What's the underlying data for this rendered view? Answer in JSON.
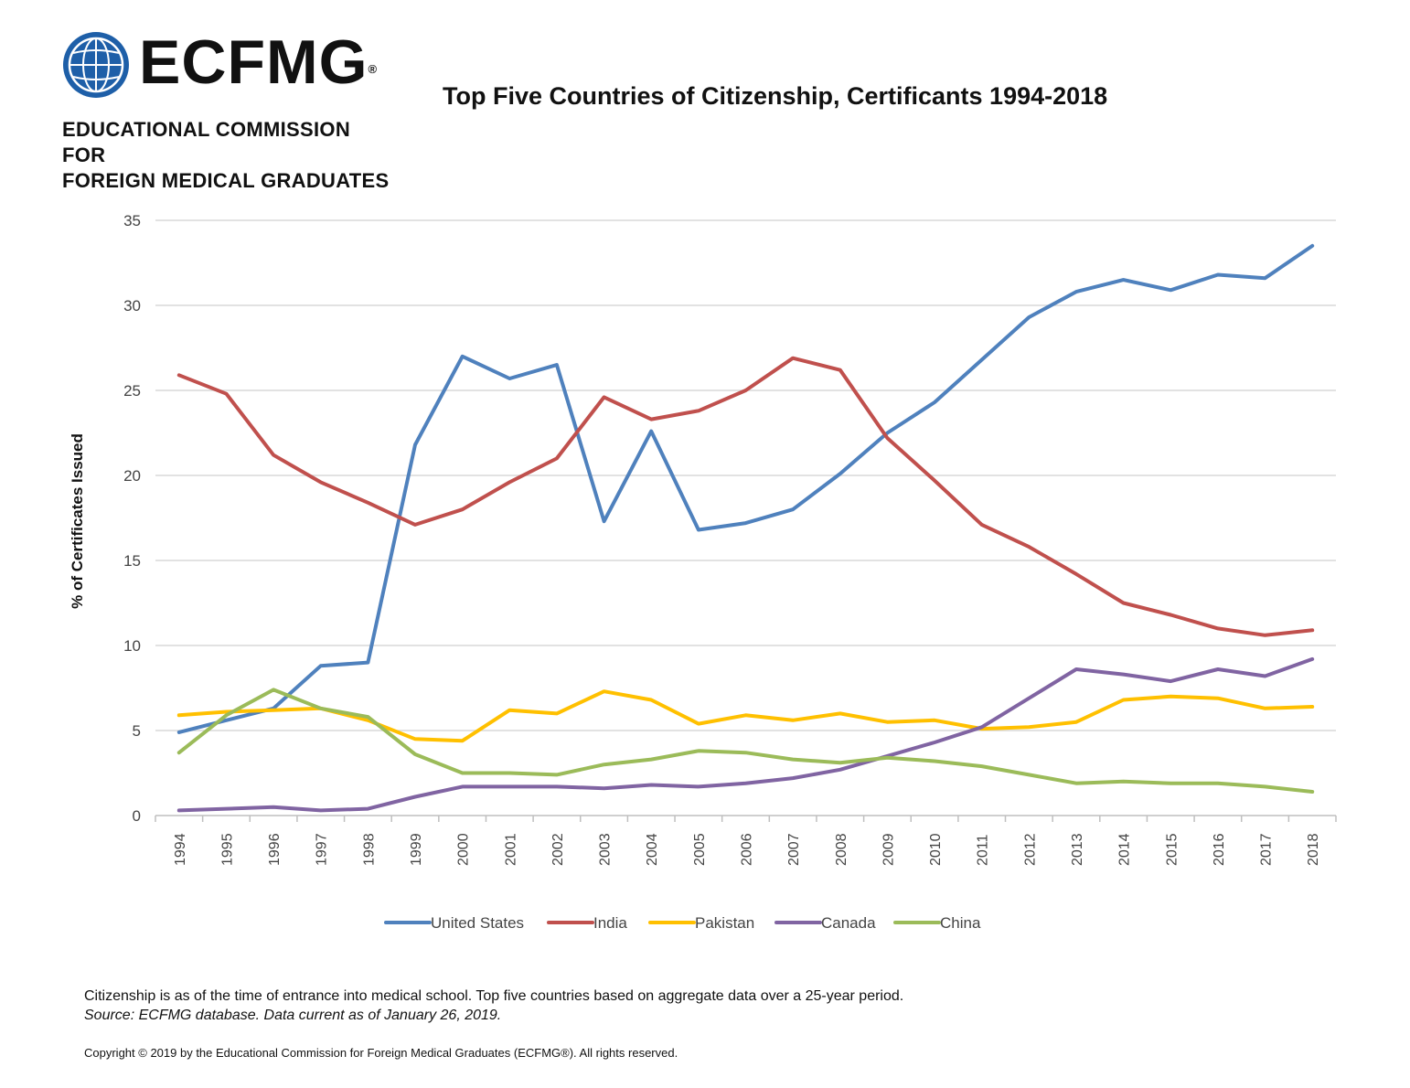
{
  "header": {
    "logo_word": "ECFMG",
    "logo_reg": "®",
    "logo_line1": "EDUCATIONAL COMMISSION FOR",
    "logo_line2": "FOREIGN MEDICAL GRADUATES",
    "title": "Top Five Countries of Citizenship, Certificants 1994-2018"
  },
  "colors": {
    "United States": "#4f81bd",
    "India": "#c0504d",
    "Pakistan": "#ffc000",
    "Canada": "#8064a2",
    "China": "#9bbb59",
    "grid": "#d9d9d9",
    "logo_blue": "#1e5fa8"
  },
  "chart_data": {
    "type": "line",
    "title": "Top Five Countries of Citizenship, Certificants 1994-2018",
    "xlabel": "",
    "ylabel": "% of Certificates Issued",
    "ylim": [
      0,
      35
    ],
    "yticks": [
      0,
      5,
      10,
      15,
      20,
      25,
      30,
      35
    ],
    "grid": true,
    "legend_position": "bottom",
    "categories": [
      "1994",
      "1995",
      "1996",
      "1997",
      "1998",
      "1999",
      "2000",
      "2001",
      "2002",
      "2003",
      "2004",
      "2005",
      "2006",
      "2007",
      "2008",
      "2009",
      "2010",
      "2011",
      "2012",
      "2013",
      "2014",
      "2015",
      "2016",
      "2017",
      "2018"
    ],
    "series": [
      {
        "name": "United States",
        "values": [
          4.9,
          5.6,
          6.3,
          8.8,
          9.0,
          21.8,
          27.0,
          25.7,
          26.5,
          17.3,
          22.6,
          16.8,
          17.2,
          18.0,
          20.1,
          22.5,
          24.3,
          26.8,
          29.3,
          30.8,
          31.5,
          30.9,
          31.8,
          31.6,
          33.5
        ]
      },
      {
        "name": "India",
        "values": [
          25.9,
          24.8,
          21.2,
          19.6,
          18.4,
          17.1,
          18.0,
          19.6,
          21.0,
          24.6,
          23.3,
          23.8,
          25.0,
          26.9,
          26.2,
          22.2,
          19.7,
          17.1,
          15.8,
          14.2,
          12.5,
          11.8,
          11.0,
          10.6,
          10.9
        ]
      },
      {
        "name": "Pakistan",
        "values": [
          5.9,
          6.1,
          6.2,
          6.3,
          5.6,
          4.5,
          4.4,
          6.2,
          6.0,
          7.3,
          6.8,
          5.4,
          5.9,
          5.6,
          6.0,
          5.5,
          5.6,
          5.1,
          5.2,
          5.5,
          6.8,
          7.0,
          6.9,
          6.3,
          6.4
        ]
      },
      {
        "name": "Canada",
        "values": [
          0.3,
          0.4,
          0.5,
          0.3,
          0.4,
          1.1,
          1.7,
          1.7,
          1.7,
          1.6,
          1.8,
          1.7,
          1.9,
          2.2,
          2.7,
          3.5,
          4.3,
          5.2,
          6.9,
          8.6,
          8.3,
          7.9,
          8.6,
          8.2,
          9.2
        ]
      },
      {
        "name": "China",
        "values": [
          3.7,
          5.9,
          7.4,
          6.3,
          5.8,
          3.6,
          2.5,
          2.5,
          2.4,
          3.0,
          3.3,
          3.8,
          3.7,
          3.3,
          3.1,
          3.4,
          3.2,
          2.9,
          2.4,
          1.9,
          2.0,
          1.9,
          1.9,
          1.7,
          1.4
        ]
      }
    ]
  },
  "footer": {
    "note": "Citizenship is as of the time of entrance into medical school. Top five countries based on aggregate data over a 25-year period.",
    "source": "Source: ECFMG database. Data current as of January 26, 2019.",
    "copyright": "Copyright © 2019 by the Educational Commission for Foreign Medical Graduates (ECFMG®). All rights reserved."
  }
}
